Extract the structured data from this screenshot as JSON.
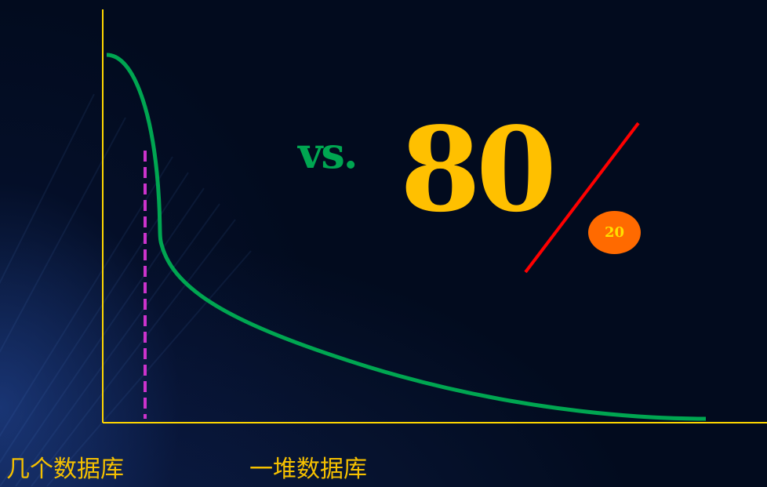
{
  "labels": {
    "vs": "vs.",
    "eighty": "80",
    "twenty": "20"
  },
  "captions": {
    "left": "几个数据库",
    "right": "一堆数据库"
  },
  "colors": {
    "background": "#020b1e",
    "axis": "#ffd700",
    "curve": "#00a651",
    "divider_dashed": "#cc33cc",
    "slash": "#ff0000",
    "vs_text": "#00a651",
    "eighty_text": "#ffc000",
    "twenty_badge": "#ff6a00",
    "twenty_text": "#ffe000",
    "caption_text": "#f5c000"
  }
}
